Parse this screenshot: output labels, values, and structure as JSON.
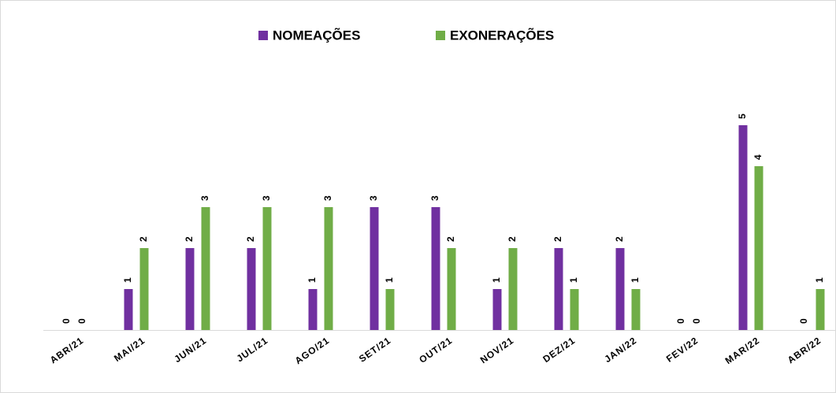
{
  "chart_data": {
    "type": "bar",
    "categories": [
      "ABR/21",
      "MAI/21",
      "JUN/21",
      "JUL/21",
      "AGO/21",
      "SET/21",
      "OUT/21",
      "NOV/21",
      "DEZ/21",
      "JAN/22",
      "FEV/22",
      "MAR/22",
      "ABR/22"
    ],
    "series": [
      {
        "name": "NOMEAÇÕES",
        "color": "#7030a0",
        "values": [
          0,
          1,
          2,
          2,
          1,
          3,
          3,
          1,
          2,
          2,
          0,
          5,
          0
        ]
      },
      {
        "name": "EXONERAÇÕES",
        "color": "#70ad47",
        "values": [
          0,
          2,
          3,
          3,
          3,
          1,
          2,
          2,
          1,
          1,
          0,
          4,
          1
        ]
      }
    ],
    "legend": "top"
  }
}
